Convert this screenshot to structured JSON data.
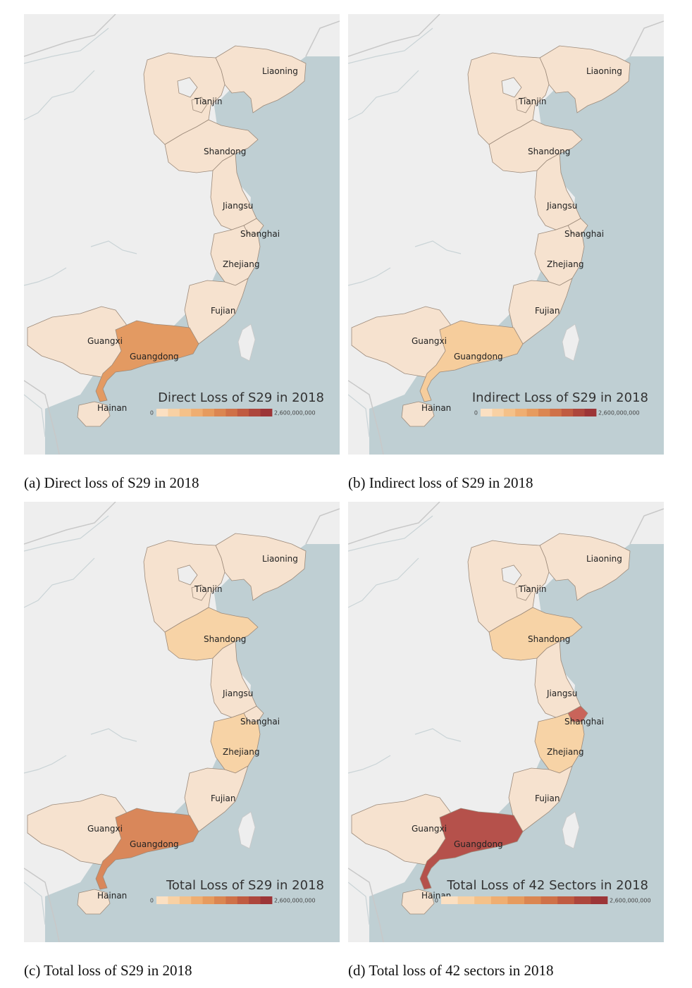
{
  "legend_min_label": "0",
  "legend_max_label": "2,600,000,000",
  "legend_palette": [
    "#fbe0c2",
    "#f8d1a4",
    "#f4c189",
    "#efae71",
    "#e69b5e",
    "#db8651",
    "#cf7148",
    "#c05b41",
    "#ad463c",
    "#9c3537"
  ],
  "colors": {
    "sea": "#bfcfd3",
    "land": "#eeeeee",
    "border": "#c8c8c8",
    "province_stroke": "#9c8a7a"
  },
  "panels": [
    {
      "id": "a",
      "legend_title": "Direct Loss of S29 in 2018",
      "caption": "(a) Direct loss of S29 in 2018",
      "fills": {
        "Liaoning": "#f6e2cf",
        "Beijing-Hebei": "#f6e2cf",
        "Tianjin": "#f6e2cf",
        "Shandong": "#f6e2cf",
        "Jiangsu": "#f6e2cf",
        "Shanghai": "#f6e2cf",
        "Zhejiang": "#f6e2cf",
        "Fujian": "#f6e2cf",
        "Guangxi": "#f6e2cf",
        "Guangdong": "#e39a62",
        "Hainan": "#f6e2cf"
      }
    },
    {
      "id": "b",
      "legend_title": "Indirect Loss of S29 in 2018",
      "caption": "(b) Indirect loss of S29 in 2018",
      "fills": {
        "Liaoning": "#f6e2cf",
        "Beijing-Hebei": "#f6e2cf",
        "Tianjin": "#f6e2cf",
        "Shandong": "#f6e2cf",
        "Jiangsu": "#f6e2cf",
        "Shanghai": "#f6e2cf",
        "Zhejiang": "#f6e2cf",
        "Fujian": "#f6e2cf",
        "Guangxi": "#f6e2cf",
        "Guangdong": "#f6cd9c",
        "Hainan": "#f6e2cf"
      }
    },
    {
      "id": "c",
      "legend_title": "Total Loss of S29 in 2018",
      "caption": "(c) Total loss of S29 in 2018",
      "fills": {
        "Liaoning": "#f6e2cf",
        "Beijing-Hebei": "#f6e2cf",
        "Tianjin": "#f6e2cf",
        "Shandong": "#f7d3a6",
        "Jiangsu": "#f6e2cf",
        "Shanghai": "#f6e2cf",
        "Zhejiang": "#f7d3a6",
        "Fujian": "#f6e2cf",
        "Guangxi": "#f6e2cf",
        "Guangdong": "#d9875a",
        "Hainan": "#f6e2cf"
      }
    },
    {
      "id": "d",
      "legend_title": "Total Loss of 42 Sectors in 2018",
      "caption": "(d) Total loss of 42 sectors in 2018",
      "fills": {
        "Liaoning": "#f6e2cf",
        "Beijing-Hebei": "#f6e2cf",
        "Tianjin": "#f6e2cf",
        "Shandong": "#f7d3a6",
        "Jiangsu": "#f6e2cf",
        "Shanghai": "#c9645a",
        "Zhejiang": "#f7d3a6",
        "Fujian": "#f6e2cf",
        "Guangxi": "#f6e2cf",
        "Guangdong": "#b5514b",
        "Hainan": "#f6e2cf"
      }
    }
  ],
  "province_labels": [
    "Liaoning",
    "Tianjin",
    "Shandong",
    "Jiangsu",
    "Shanghai",
    "Zhejiang",
    "Fujian",
    "Guangxi",
    "Guangdong",
    "Hainan"
  ]
}
